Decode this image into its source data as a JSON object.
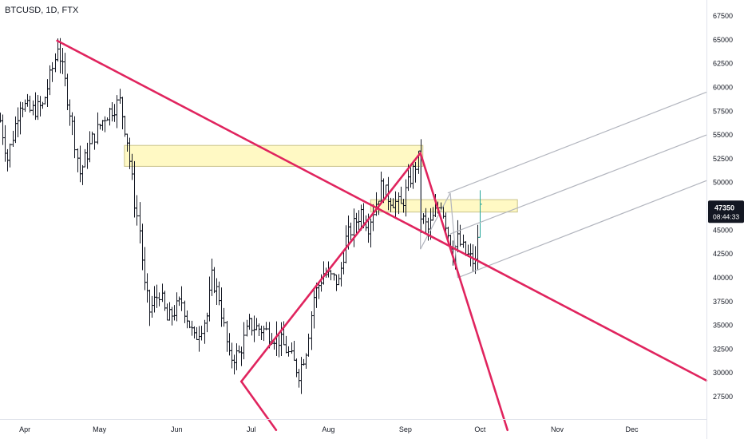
{
  "header": {
    "symbol_title": "BTCUSD, 1D, FTX"
  },
  "chart_data": {
    "type": "ohlc",
    "title": "BTCUSD, 1D, FTX",
    "xlabel": "",
    "ylabel": "",
    "ylim": [
      25500,
      70000
    ],
    "x_range": [
      "2021-03-22",
      "2021-12-31"
    ],
    "x_ticks": [
      {
        "label": "Apr",
        "date": "2021-04-01"
      },
      {
        "label": "May",
        "date": "2021-05-01"
      },
      {
        "label": "Jun",
        "date": "2021-06-01"
      },
      {
        "label": "Jul",
        "date": "2021-07-01"
      },
      {
        "label": "Aug",
        "date": "2021-08-01"
      },
      {
        "label": "Sep",
        "date": "2021-09-01"
      },
      {
        "label": "Oct",
        "date": "2021-10-01"
      },
      {
        "label": "Nov",
        "date": "2021-11-01"
      },
      {
        "label": "Dec",
        "date": "2021-12-01"
      }
    ],
    "y_ticks": [
      27500,
      30000,
      32500,
      35000,
      37500,
      40000,
      42500,
      45000,
      47500,
      50000,
      52500,
      55000,
      57500,
      60000,
      62500,
      65000,
      67500
    ],
    "last_price": {
      "value": 47350,
      "label": "47350",
      "countdown": "08:44:33"
    },
    "price_path": [
      [
        "2021-03-22",
        56500
      ],
      [
        "2021-03-25",
        52500
      ],
      [
        "2021-03-30",
        58500
      ],
      [
        "2021-04-03",
        57500
      ],
      [
        "2021-04-08",
        58000
      ],
      [
        "2021-04-13",
        63000
      ],
      [
        "2021-04-14",
        64500
      ],
      [
        "2021-04-17",
        60500
      ],
      [
        "2021-04-20",
        56000
      ],
      [
        "2021-04-23",
        51000
      ],
      [
        "2021-04-28",
        54500
      ],
      [
        "2021-05-03",
        57000
      ],
      [
        "2021-05-09",
        58500
      ],
      [
        "2021-05-12",
        54500
      ],
      [
        "2021-05-15",
        48000
      ],
      [
        "2021-05-17",
        45000
      ],
      [
        "2021-05-19",
        39000
      ],
      [
        "2021-05-21",
        36500
      ],
      [
        "2021-05-25",
        38500
      ],
      [
        "2021-05-28",
        35500
      ],
      [
        "2021-06-03",
        37500
      ],
      [
        "2021-06-08",
        33500
      ],
      [
        "2021-06-13",
        36000
      ],
      [
        "2021-06-15",
        40000
      ],
      [
        "2021-06-18",
        38000
      ],
      [
        "2021-06-22",
        31500
      ],
      [
        "2021-06-26",
        32000
      ],
      [
        "2021-06-30",
        35000
      ],
      [
        "2021-07-06",
        34500
      ],
      [
        "2021-07-12",
        33500
      ],
      [
        "2021-07-15",
        32500
      ],
      [
        "2021-07-20",
        30000
      ],
      [
        "2021-07-23",
        32500
      ],
      [
        "2021-07-26",
        38000
      ],
      [
        "2021-07-30",
        40500
      ],
      [
        "2021-08-05",
        39500
      ],
      [
        "2021-08-08",
        44000
      ],
      [
        "2021-08-14",
        47000
      ],
      [
        "2021-08-17",
        45500
      ],
      [
        "2021-08-22",
        49500
      ],
      [
        "2021-08-25",
        48500
      ],
      [
        "2021-08-30",
        47500
      ],
      [
        "2021-09-03",
        50500
      ],
      [
        "2021-09-06",
        52500
      ],
      [
        "2021-09-07",
        46500
      ],
      [
        "2021-09-10",
        45000
      ],
      [
        "2021-09-15",
        48000
      ],
      [
        "2021-09-20",
        42500
      ],
      [
        "2021-09-22",
        44000
      ],
      [
        "2021-09-25",
        42500
      ],
      [
        "2021-09-29",
        41500
      ],
      [
        "2021-10-01",
        47350
      ]
    ],
    "zones": [
      {
        "name": "zone-upper",
        "from": "2021-05-11",
        "to": "2021-09-08",
        "low": 51700,
        "high": 53900
      },
      {
        "name": "zone-lower",
        "from": "2021-08-18",
        "to": "2021-10-16",
        "low": 46900,
        "high": 48200
      }
    ],
    "trendlines_pink": [
      {
        "name": "downtrend-main",
        "from": [
          "2021-04-14",
          64900
        ],
        "to": [
          "2021-12-31",
          29200
        ]
      },
      {
        "name": "downtrend-lower",
        "from": [
          "2021-06-27",
          29100
        ],
        "to": [
          "2021-07-11",
          24000
        ]
      },
      {
        "name": "uptrend-main",
        "from": [
          "2021-06-27",
          29100
        ],
        "to": [
          "2021-09-07",
          53100
        ]
      },
      {
        "name": "downtrend-sep",
        "from": [
          "2021-09-07",
          53100
        ],
        "to": [
          "2021-10-12",
          24000
        ]
      }
    ],
    "trendlines_gray": [
      {
        "name": "channel-top",
        "from": [
          "2021-09-18",
          48900
        ],
        "to": [
          "2021-12-31",
          59500
        ]
      },
      {
        "name": "channel-mid",
        "from": [
          "2021-09-19",
          44600
        ],
        "to": [
          "2021-12-31",
          55000
        ]
      },
      {
        "name": "channel-bottom",
        "from": [
          "2021-09-22",
          40000
        ],
        "to": [
          "2021-12-31",
          50200
        ]
      },
      {
        "name": "pitchfork-left",
        "from": [
          "2021-09-07",
          53100
        ],
        "to": [
          "2021-09-07",
          43000
        ]
      },
      {
        "name": "pitchfork-base",
        "from": [
          "2021-09-07",
          43000
        ],
        "to": [
          "2021-09-19",
          48900
        ]
      },
      {
        "name": "pitchfork-right",
        "from": [
          "2021-09-19",
          48900
        ],
        "to": [
          "2021-09-22",
          40000
        ]
      }
    ],
    "colors": {
      "bar": "#131722",
      "last_bar": "#26a69a",
      "trend_pink": "#e0245e",
      "trend_gray": "#b2b5be",
      "zone_fill": "#fff9c4",
      "zone_border": "#c9c38a",
      "price_label_bg": "#131722",
      "price_label_text": "#ffffff",
      "axis_text": "#131722"
    }
  }
}
